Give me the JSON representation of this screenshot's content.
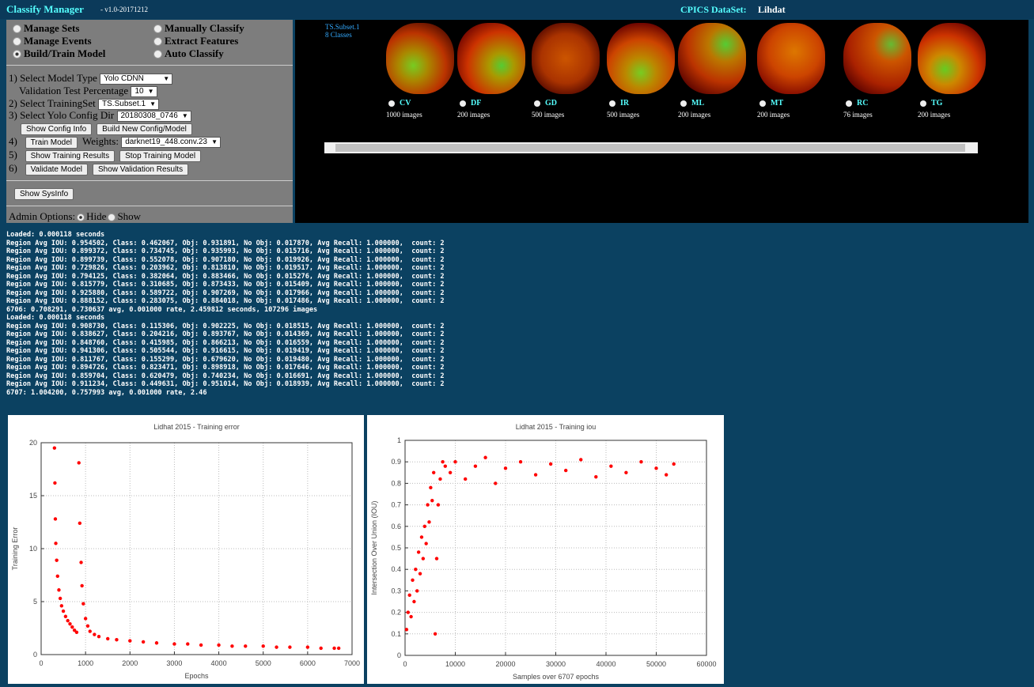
{
  "header": {
    "app_title": "Classify Manager",
    "version": "- v1.0-20171212",
    "dataset_label": "CPICS DataSet:",
    "dataset_name": "Lihdat"
  },
  "nav": [
    "Manage Sets",
    "Manually Classify",
    "Manage Events",
    "Extract Features",
    "Build/Train Model",
    "Auto Classify"
  ],
  "form": {
    "step1_label": "1) Select Model Type",
    "model_type": "Yolo CDNN",
    "validation_label": "Validation Test Percentage",
    "validation_value": "10",
    "step2_label": "2) Select TrainingSet",
    "training_set": "TS.Subset.1",
    "step3_label": "3) Select Yolo Config Dir",
    "config_dir": "20180308_0746",
    "show_config": "Show Config Info",
    "build_config": "Build New Config/Model",
    "step4": "4)",
    "train": "Train Model",
    "weights_label": "Weights:",
    "weights": "darknet19_448.conv.23",
    "step5": "5)",
    "show_training": "Show Training Results",
    "stop_training": "Stop Training Model",
    "step6": "6)",
    "validate": "Validate Model",
    "show_validation": "Show Validation Results",
    "sysinfo": "Show SysInfo",
    "admin_label": "Admin Options:",
    "admin_hide": "Hide",
    "admin_show": "Show"
  },
  "dataset": {
    "subset": "TS.Subset.1",
    "class_count": "8 Classes",
    "classes": [
      {
        "name": "CV",
        "count": "1000 images"
      },
      {
        "name": "DF",
        "count": "200 images"
      },
      {
        "name": "GD",
        "count": "500 images"
      },
      {
        "name": "IR",
        "count": "500 images"
      },
      {
        "name": "ML",
        "count": "200 images"
      },
      {
        "name": "MT",
        "count": "200 images"
      },
      {
        "name": "RC",
        "count": "76 images"
      },
      {
        "name": "TG",
        "count": "200 images"
      }
    ]
  },
  "log": [
    "Loaded: 0.000118 seconds",
    "Region Avg IOU: 0.954502, Class: 0.462067, Obj: 0.931891, No Obj: 0.017870, Avg Recall: 1.000000,  count: 2",
    "Region Avg IOU: 0.899372, Class: 0.734745, Obj: 0.935993, No Obj: 0.015716, Avg Recall: 1.000000,  count: 2",
    "Region Avg IOU: 0.899739, Class: 0.552078, Obj: 0.907180, No Obj: 0.019926, Avg Recall: 1.000000,  count: 2",
    "Region Avg IOU: 0.729826, Class: 0.203962, Obj: 0.813810, No Obj: 0.019517, Avg Recall: 1.000000,  count: 2",
    "Region Avg IOU: 0.794125, Class: 0.382064, Obj: 0.883466, No Obj: 0.015276, Avg Recall: 1.000000,  count: 2",
    "Region Avg IOU: 0.815779, Class: 0.310685, Obj: 0.873433, No Obj: 0.015409, Avg Recall: 1.000000,  count: 2",
    "Region Avg IOU: 0.925880, Class: 0.589722, Obj: 0.907269, No Obj: 0.017966, Avg Recall: 1.000000,  count: 2",
    "Region Avg IOU: 0.888152, Class: 0.283075, Obj: 0.884018, No Obj: 0.017486, Avg Recall: 1.000000,  count: 2",
    "6706: 0.708291, 0.730637 avg, 0.001000 rate, 2.459812 seconds, 107296 images",
    "Loaded: 0.000118 seconds",
    "Region Avg IOU: 0.908730, Class: 0.115306, Obj: 0.902225, No Obj: 0.018515, Avg Recall: 1.000000,  count: 2",
    "Region Avg IOU: 0.838627, Class: 0.204216, Obj: 0.893767, No Obj: 0.014369, Avg Recall: 1.000000,  count: 2",
    "Region Avg IOU: 0.848760, Class: 0.415985, Obj: 0.866213, No Obj: 0.016559, Avg Recall: 1.000000,  count: 2",
    "Region Avg IOU: 0.941306, Class: 0.505544, Obj: 0.916615, No Obj: 0.019419, Avg Recall: 1.000000,  count: 2",
    "Region Avg IOU: 0.811767, Class: 0.155299, Obj: 0.679620, No Obj: 0.019480, Avg Recall: 1.000000,  count: 2",
    "Region Avg IOU: 0.894726, Class: 0.823471, Obj: 0.898918, No Obj: 0.017646, Avg Recall: 1.000000,  count: 2",
    "Region Avg IOU: 0.859704, Class: 0.620479, Obj: 0.740234, No Obj: 0.016691, Avg Recall: 1.000000,  count: 2",
    "Region Avg IOU: 0.911234, Class: 0.449631, Obj: 0.951014, No Obj: 0.018939, Avg Recall: 1.000000,  count: 2",
    "6707: 1.004200, 0.757993 avg, 0.001000 rate, 2.46"
  ],
  "chart_data": [
    {
      "type": "scatter",
      "title": "Lidhat 2015 - Training error",
      "x_label": "Epochs",
      "y_label": "Training Error",
      "color": "#ff0000",
      "grid": true,
      "xlim": [
        0,
        7000
      ],
      "xticks": [
        0,
        1000,
        2000,
        3000,
        4000,
        5000,
        6000,
        7000
      ],
      "ylim": [
        0,
        20
      ],
      "yticks": [
        0,
        5,
        10,
        15,
        20
      ],
      "x": [
        300,
        310,
        320,
        330,
        350,
        370,
        400,
        430,
        460,
        500,
        550,
        600,
        650,
        700,
        750,
        800,
        850,
        870,
        900,
        920,
        950,
        1000,
        1050,
        1100,
        1200,
        1300,
        1500,
        1700,
        2000,
        2300,
        2600,
        3000,
        3300,
        3600,
        4000,
        4300,
        4600,
        5000,
        5300,
        5600,
        6000,
        6300,
        6600,
        6700
      ],
      "values": [
        19.5,
        16.2,
        12.8,
        10.5,
        8.9,
        7.4,
        6.1,
        5.3,
        4.6,
        4.1,
        3.6,
        3.2,
        2.9,
        2.6,
        2.3,
        2.1,
        18.1,
        12.4,
        8.7,
        6.5,
        4.8,
        3.4,
        2.7,
        2.2,
        1.9,
        1.7,
        1.5,
        1.4,
        1.3,
        1.2,
        1.1,
        1.0,
        1.0,
        0.9,
        0.9,
        0.8,
        0.8,
        0.8,
        0.7,
        0.7,
        0.7,
        0.6,
        0.6,
        0.6
      ]
    },
    {
      "type": "scatter",
      "title": "Lidhat 2015 - Training iou",
      "x_label": "Samples over 6707 epochs",
      "y_label": "Intersection Over Union (IOU)",
      "color": "#ff0000",
      "grid": true,
      "xlim": [
        0,
        60000
      ],
      "xticks": [
        0,
        10000,
        20000,
        30000,
        40000,
        50000,
        60000
      ],
      "ylim": [
        0,
        1
      ],
      "yticks": [
        0,
        0.1,
        0.2,
        0.3,
        0.4,
        0.5,
        0.6,
        0.7,
        0.8,
        0.9,
        1
      ],
      "x": [
        300,
        600,
        900,
        1200,
        1500,
        1800,
        2100,
        2400,
        2700,
        3000,
        3300,
        3600,
        3900,
        4200,
        4500,
        4800,
        5100,
        5400,
        5700,
        6000,
        6300,
        6600,
        7000,
        7500,
        8000,
        9000,
        10000,
        12000,
        14000,
        16000,
        18000,
        20000,
        23000,
        26000,
        29000,
        32000,
        35000,
        38000,
        41000,
        44000,
        47000,
        50000,
        52000,
        53500
      ],
      "values": [
        0.12,
        0.2,
        0.28,
        0.18,
        0.35,
        0.25,
        0.4,
        0.3,
        0.48,
        0.38,
        0.55,
        0.45,
        0.6,
        0.52,
        0.7,
        0.62,
        0.78,
        0.72,
        0.85,
        0.1,
        0.45,
        0.7,
        0.82,
        0.9,
        0.88,
        0.85,
        0.9,
        0.82,
        0.88,
        0.92,
        0.8,
        0.87,
        0.9,
        0.84,
        0.89,
        0.86,
        0.91,
        0.83,
        0.88,
        0.85,
        0.9,
        0.87,
        0.84,
        0.89
      ]
    }
  ]
}
